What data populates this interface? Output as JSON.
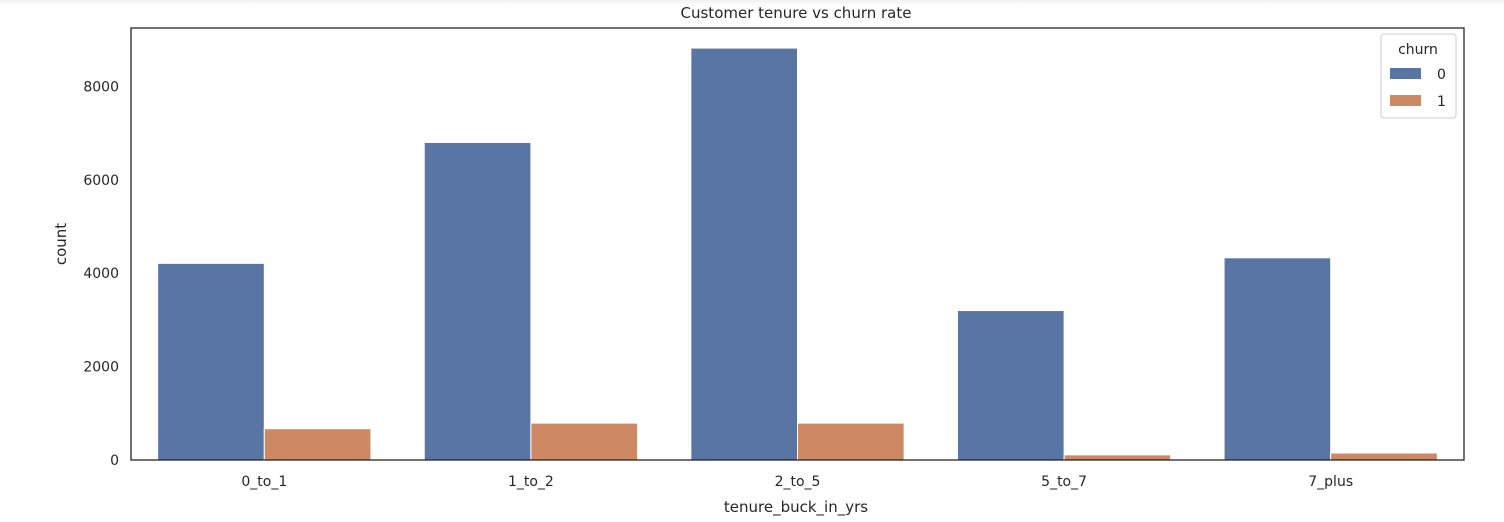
{
  "chart_data": {
    "type": "bar",
    "title": "Customer tenure vs churn rate",
    "xlabel": "tenure_buck_in_yrs",
    "ylabel": "count",
    "categories": [
      "0_to_1",
      "1_to_2",
      "2_to_5",
      "5_to_7",
      "7_plus"
    ],
    "series": [
      {
        "name": "0",
        "color": "#5975a4",
        "values": [
          4210,
          6800,
          8820,
          3200,
          4330
        ]
      },
      {
        "name": "1",
        "color": "#cc8963",
        "values": [
          670,
          790,
          790,
          110,
          150
        ]
      }
    ],
    "ylim": [
      0,
      9250
    ],
    "yticks": [
      0,
      2000,
      4000,
      6000,
      8000
    ],
    "legend": {
      "title": "churn",
      "position": "top-right"
    },
    "grid": false
  }
}
